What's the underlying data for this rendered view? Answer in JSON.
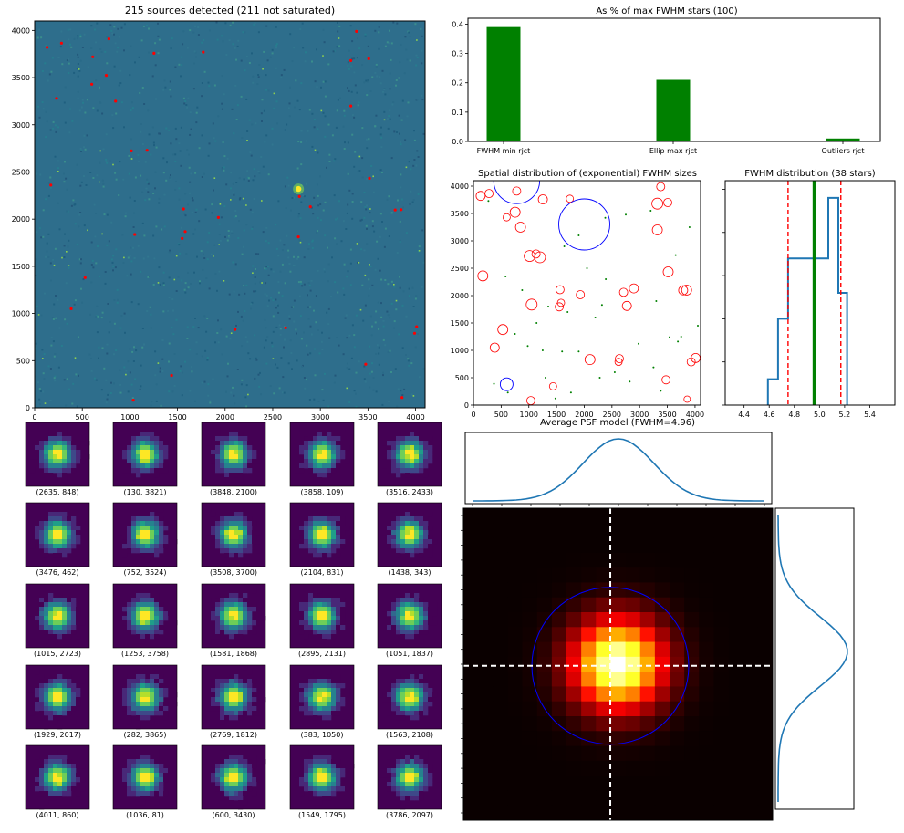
{
  "colors": {
    "bar_green": "#008000",
    "hist_blue": "#1f77b4",
    "median_green": "#008000",
    "bounds_red": "#ff0000",
    "marker_red": "#ff0000",
    "circle_blue": "#0000ff",
    "image_bg": "#2e6e8c",
    "thumb_bg": "#440154",
    "cross_white": "#ffffff"
  },
  "chart_data": [
    {
      "id": "sky-image",
      "type": "heatmap",
      "title": "215 sources detected (211 not saturated)",
      "xlim": [
        0,
        4100
      ],
      "ylim": [
        0,
        4100
      ],
      "xticks": [
        "0",
        "500",
        "1000",
        "1500",
        "2000",
        "2500",
        "3000",
        "3500",
        "4000"
      ],
      "yticks": [
        "0",
        "500",
        "1000",
        "1500",
        "2000",
        "2500",
        "3000",
        "3500",
        "4000"
      ],
      "bright_source": [
        2770,
        2320
      ],
      "marked_sources": [
        [
          2635,
          848
        ],
        [
          130,
          3821
        ],
        [
          3848,
          2100
        ],
        [
          3858,
          109
        ],
        [
          3516,
          2433
        ],
        [
          3476,
          462
        ],
        [
          752,
          3524
        ],
        [
          3508,
          3700
        ],
        [
          2104,
          831
        ],
        [
          1438,
          343
        ],
        [
          1015,
          2723
        ],
        [
          1253,
          3758
        ],
        [
          1581,
          1868
        ],
        [
          2895,
          2131
        ],
        [
          1051,
          1837
        ],
        [
          1929,
          2017
        ],
        [
          282,
          3865
        ],
        [
          2769,
          1812
        ],
        [
          383,
          1050
        ],
        [
          1563,
          2108
        ],
        [
          4011,
          860
        ],
        [
          1036,
          81
        ],
        [
          600,
          3430
        ],
        [
          1549,
          1795
        ],
        [
          3786,
          2097
        ],
        [
          170,
          2360
        ],
        [
          530,
          1380
        ],
        [
          230,
          3280
        ],
        [
          610,
          3720
        ],
        [
          780,
          3910
        ],
        [
          850,
          3250
        ],
        [
          1180,
          2730
        ],
        [
          3380,
          3990
        ],
        [
          3320,
          3200
        ],
        [
          3320,
          3680
        ],
        [
          3990,
          790
        ],
        [
          2780,
          2240
        ],
        [
          1770,
          3770
        ]
      ]
    },
    {
      "id": "reject-bars",
      "type": "bar",
      "title": "As % of max FWHM stars (100)",
      "categories": [
        "FWHM min rjct",
        "Ellip max rjct",
        "Outliers rjct"
      ],
      "values": [
        0.39,
        0.21,
        0.01
      ],
      "ylim": [
        0,
        0.42
      ],
      "yticks": [
        "0.0",
        "0.1",
        "0.2",
        "0.3",
        "0.4"
      ]
    },
    {
      "id": "spatial-fwhm",
      "type": "scatter",
      "title": "Spatial distribution of (exponential) FWHM sizes",
      "xlim": [
        0,
        4100
      ],
      "ylim": [
        0,
        4100
      ],
      "xticks": [
        "0",
        "500",
        "1000",
        "1500",
        "2000",
        "2500",
        "3000",
        "3500",
        "4000"
      ],
      "yticks": [
        "0",
        "500",
        "1000",
        "1500",
        "2000",
        "2500",
        "3000",
        "3500",
        "4000"
      ],
      "red_circles": [
        [
          130,
          3821,
          1.0
        ],
        [
          282,
          3865,
          0.9
        ],
        [
          600,
          3430,
          0.8
        ],
        [
          752,
          3524,
          1.1
        ],
        [
          780,
          3910,
          0.9
        ],
        [
          850,
          3250,
          1.1
        ],
        [
          1015,
          2723,
          1.2
        ],
        [
          1253,
          3758,
          1.0
        ],
        [
          1581,
          1868,
          0.8
        ],
        [
          1563,
          2108,
          0.9
        ],
        [
          1549,
          1795,
          0.9
        ],
        [
          1051,
          1837,
          1.2
        ],
        [
          1929,
          2017,
          0.9
        ],
        [
          2104,
          831,
          1.1
        ],
        [
          1438,
          343,
          0.8
        ],
        [
          383,
          1050,
          1.0
        ],
        [
          530,
          1380,
          1.1
        ],
        [
          170,
          2360,
          1.1
        ],
        [
          2635,
          848,
          0.9
        ],
        [
          2769,
          1812,
          1.0
        ],
        [
          2895,
          2131,
          1.0
        ],
        [
          2710,
          2060,
          0.9
        ],
        [
          3476,
          462,
          0.9
        ],
        [
          3516,
          2433,
          1.1
        ],
        [
          3508,
          3700,
          0.9
        ],
        [
          3320,
          3680,
          1.2
        ],
        [
          3380,
          3990,
          0.9
        ],
        [
          3848,
          2100,
          1.1
        ],
        [
          3786,
          2097,
          1.0
        ],
        [
          4011,
          860,
          1.0
        ],
        [
          3930,
          790,
          0.9
        ],
        [
          1036,
          81,
          0.9
        ],
        [
          3320,
          3200,
          1.1
        ],
        [
          1200,
          2700,
          1.2
        ],
        [
          1740,
          3770,
          0.8
        ],
        [
          2620,
          790,
          0.8
        ],
        [
          1130,
          2760,
          0.9
        ],
        [
          3858,
          109,
          0.7
        ]
      ],
      "green_points": [
        [
          270,
          3730
        ],
        [
          580,
          2350
        ],
        [
          1640,
          2900
        ],
        [
          1900,
          3100
        ],
        [
          2380,
          3420
        ],
        [
          2750,
          3480
        ],
        [
          3200,
          3550
        ],
        [
          3900,
          3250
        ],
        [
          3650,
          2740
        ],
        [
          2050,
          2500
        ],
        [
          2320,
          1830
        ],
        [
          2200,
          1600
        ],
        [
          1700,
          1700
        ],
        [
          1350,
          1800
        ],
        [
          880,
          2100
        ],
        [
          750,
          1300
        ],
        [
          980,
          1080
        ],
        [
          1250,
          1000
        ],
        [
          1600,
          980
        ],
        [
          1900,
          980
        ],
        [
          2550,
          600
        ],
        [
          2280,
          500
        ],
        [
          1760,
          230
        ],
        [
          1480,
          120
        ],
        [
          620,
          230
        ],
        [
          370,
          390
        ],
        [
          3250,
          690
        ],
        [
          3540,
          1240
        ],
        [
          3690,
          1160
        ],
        [
          3300,
          1900
        ],
        [
          3750,
          1250
        ],
        [
          2820,
          430
        ],
        [
          3380,
          260
        ],
        [
          1300,
          500
        ],
        [
          2980,
          1120
        ],
        [
          4050,
          1450
        ],
        [
          2390,
          2300
        ],
        [
          1140,
          1500
        ]
      ],
      "blue_circles": [
        [
          780,
          4100,
          0.9
        ],
        [
          2000,
          3300,
          1.0
        ],
        [
          600,
          380,
          0.25
        ]
      ]
    },
    {
      "id": "fwhm-hist",
      "type": "histogram",
      "title": "FWHM distribution (38 stars)",
      "xlim": [
        4.25,
        5.6
      ],
      "xticks": [
        "4.4",
        "4.6",
        "4.8",
        "5.0",
        "5.2",
        "5.4"
      ],
      "edges": [
        4.59,
        4.67,
        4.75,
        4.83,
        4.91,
        4.99,
        5.07,
        5.15,
        5.22
      ],
      "counts": [
        3,
        10,
        17,
        17,
        17,
        17,
        24,
        13
      ],
      "median": 4.96,
      "bounds": [
        4.75,
        5.17
      ]
    },
    {
      "id": "psf-model",
      "type": "heatmap",
      "title": "Average PSF model (FWHM=4.96)",
      "size": 21,
      "fwhm": 4.96
    }
  ],
  "stamps": [
    {
      "label": "(2635, 848)"
    },
    {
      "label": "(130, 3821)"
    },
    {
      "label": "(3848, 2100)"
    },
    {
      "label": "(3858, 109)"
    },
    {
      "label": "(3516, 2433)"
    },
    {
      "label": "(3476, 462)"
    },
    {
      "label": "(752, 3524)"
    },
    {
      "label": "(3508, 3700)"
    },
    {
      "label": "(2104, 831)"
    },
    {
      "label": "(1438, 343)"
    },
    {
      "label": "(1015, 2723)"
    },
    {
      "label": "(1253, 3758)"
    },
    {
      "label": "(1581, 1868)"
    },
    {
      "label": "(2895, 2131)"
    },
    {
      "label": "(1051, 1837)"
    },
    {
      "label": "(1929, 2017)"
    },
    {
      "label": "(282, 3865)"
    },
    {
      "label": "(2769, 1812)"
    },
    {
      "label": "(383, 1050)"
    },
    {
      "label": "(1563, 2108)"
    },
    {
      "label": "(4011, 860)"
    },
    {
      "label": "(1036, 81)"
    },
    {
      "label": "(600, 3430)"
    },
    {
      "label": "(1549, 1795)"
    },
    {
      "label": "(3786, 2097)"
    }
  ]
}
